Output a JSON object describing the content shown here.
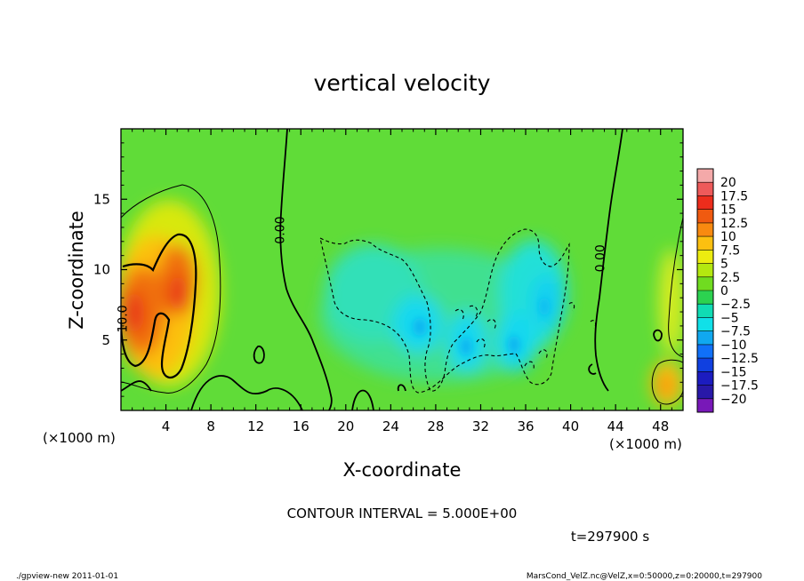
{
  "chart_data": {
    "type": "heatmap",
    "title": "vertical velocity",
    "xlabel": "X-coordinate",
    "ylabel": "Z-coordinate",
    "x_unit": "(×1000 m)",
    "z_unit": "(×1000 m)",
    "xlim": [
      0,
      50
    ],
    "ylim": [
      0,
      20
    ],
    "x_ticks": [
      4,
      8,
      12,
      16,
      20,
      24,
      28,
      32,
      36,
      40,
      44,
      48
    ],
    "y_ticks": [
      5,
      10,
      15
    ],
    "contour_interval": "CONTOUR INTERVAL = 5.000E+00",
    "time": "t=297900 s",
    "contour_labels": [
      {
        "text": "0.00",
        "x": 14.5,
        "z": 12.8
      },
      {
        "text": "0.00",
        "x": 43.0,
        "z": 10.8
      },
      {
        "text": "10.0",
        "x": 0.5,
        "z": 6.5
      }
    ],
    "colorbar": {
      "levels": [
        "20",
        "17.5",
        "15",
        "12.5",
        "10",
        "7.5",
        "5",
        "2.5",
        "0",
        "−2.5",
        "−5",
        "−7.5",
        "−10",
        "−12.5",
        "−15",
        "−17.5",
        "−20"
      ],
      "colors": [
        "#f4a9a9",
        "#ee5a5a",
        "#ec2d1c",
        "#f05a10",
        "#f88a10",
        "#fcc010",
        "#ecec10",
        "#b4e810",
        "#70dc20",
        "#2cd250",
        "#10dcb4",
        "#10e0e8",
        "#10a8f0",
        "#1070f8",
        "#1040e0",
        "#1c1cc0",
        "#2818a8",
        "#7818b8"
      ]
    },
    "features": [
      {
        "kind": "updraft",
        "x_range": [
          0,
          8.5
        ],
        "z_range": [
          1,
          16.5
        ],
        "peak": 15
      },
      {
        "kind": "downdraft",
        "x_range": [
          17.5,
          39
        ],
        "z_range": [
          1.5,
          12.5
        ],
        "min": -7.5
      },
      {
        "kind": "updraft",
        "x_range": [
          47,
          50
        ],
        "z_range": [
          1,
          4
        ],
        "peak": 10
      }
    ]
  },
  "footer": {
    "left": "./gpview-new  2011-01-01",
    "right": "MarsCond_VelZ.nc@VelZ,x=0:50000,z=0:20000,t=297900"
  }
}
